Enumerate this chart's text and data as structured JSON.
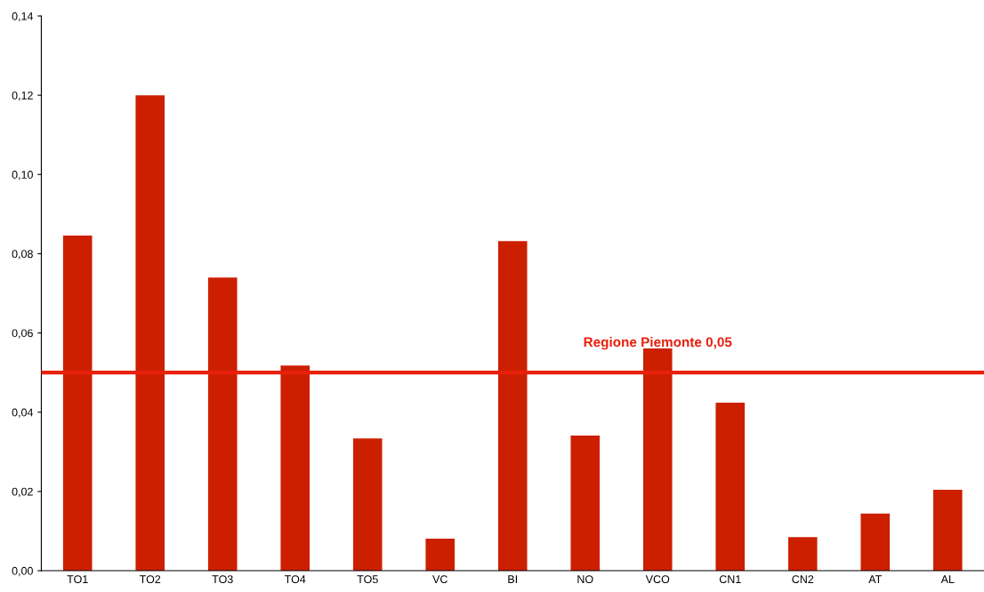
{
  "chart_data": {
    "type": "bar",
    "categories": [
      "TO1",
      "TO2",
      "TO3",
      "TO4",
      "TO5",
      "VC",
      "BI",
      "NO",
      "VCO",
      "CN1",
      "CN2",
      "AT",
      "AL"
    ],
    "values": [
      0.0846,
      0.12,
      0.074,
      0.0518,
      0.0334,
      0.0081,
      0.0832,
      0.0341,
      0.0561,
      0.0424,
      0.0085,
      0.0144,
      0.0204
    ],
    "color": "#cc1f00",
    "ylim": [
      0,
      0.14
    ],
    "yticks": [
      {
        "value": 0,
        "label": "0,00"
      },
      {
        "value": 0.02,
        "label": "0,02"
      },
      {
        "value": 0.04,
        "label": "0,04"
      },
      {
        "value": 0.06,
        "label": "0,06"
      },
      {
        "value": 0.08,
        "label": "0,08"
      },
      {
        "value": 0.1,
        "label": "0,10"
      },
      {
        "value": 0.12,
        "label": "0,12"
      },
      {
        "value": 0.14,
        "label": "0,14"
      }
    ],
    "ref_lines": [
      {
        "axis": "y",
        "value": 0.05,
        "label": "Regione Piemonte 0,05",
        "color": "#e8200c"
      }
    ],
    "grid": false,
    "legend": false
  }
}
